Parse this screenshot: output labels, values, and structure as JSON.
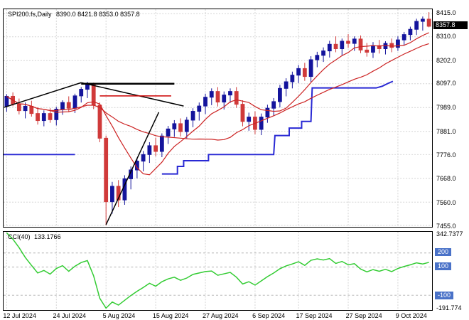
{
  "header": {
    "symbol_period": "SPI200.fs,Daily",
    "ohlc": "8390.0 8421.8 8353.0 8357.8"
  },
  "colors": {
    "up": "#14149c",
    "down": "#d03a3a",
    "ma": "#cc2222",
    "step_line": "#2929d4",
    "cci_line": "#33cc33",
    "grid": "#d4d4d4",
    "level": "#b0b0b0",
    "badge_bg": "#000000",
    "badge_text": "#ffffff",
    "level_badge_bg": "#4a72c8"
  },
  "chart_data": {
    "type": "candlestick",
    "symbol": "SPI200.fs",
    "timeframe": "Daily",
    "current": {
      "open": 8390.0,
      "high": 8421.8,
      "low": 8353.0,
      "close": 8357.8
    },
    "current_price_label": "8357.8",
    "price_axis_labels": [
      "8415.0",
      "8310.0",
      "8202.0",
      "8097.0",
      "7989.0",
      "7881.0",
      "7776.0",
      "7668.0",
      "7560.0",
      "7455.0"
    ],
    "price_range": [
      7448,
      8435
    ],
    "date_labels": [
      [
        "12 Jul 2024",
        0
      ],
      [
        "24 Jul 2024",
        8
      ],
      [
        "5 Aug 2024",
        16
      ],
      [
        "15 Aug 2024",
        24
      ],
      [
        "27 Aug 2024",
        32
      ],
      [
        "6 Sep 2024",
        40
      ],
      [
        "17 Sep 2024",
        47
      ],
      [
        "27 Sep 2024",
        55
      ],
      [
        "9 Oct 2024",
        63
      ]
    ],
    "candles": [
      [
        7995,
        8050,
        7970,
        8040
      ],
      [
        8040,
        8058,
        7995,
        8005
      ],
      [
        8005,
        8030,
        7958,
        7975
      ],
      [
        7975,
        8012,
        7940,
        7995
      ],
      [
        7995,
        8020,
        7948,
        7962
      ],
      [
        7962,
        7990,
        7912,
        7930
      ],
      [
        7930,
        7976,
        7904,
        7962
      ],
      [
        7962,
        7986,
        7920,
        7934
      ],
      [
        7934,
        7992,
        7908,
        7982
      ],
      [
        7982,
        8022,
        7956,
        8012
      ],
      [
        8012,
        8040,
        7968,
        7986
      ],
      [
        7986,
        8052,
        7964,
        8042
      ],
      [
        8042,
        8082,
        8012,
        8072
      ],
      [
        8072,
        8106,
        8032,
        8096
      ],
      [
        8096,
        8102,
        7982,
        8000
      ],
      [
        8000,
        8012,
        7832,
        7850
      ],
      [
        7850,
        7862,
        7455,
        7562
      ],
      [
        7562,
        7652,
        7508,
        7632
      ],
      [
        7632,
        7660,
        7538,
        7570
      ],
      [
        7570,
        7682,
        7548,
        7666
      ],
      [
        7666,
        7722,
        7618,
        7706
      ],
      [
        7706,
        7762,
        7668,
        7746
      ],
      [
        7746,
        7792,
        7700,
        7776
      ],
      [
        7776,
        7832,
        7738,
        7816
      ],
      [
        7816,
        7852,
        7768,
        7790
      ],
      [
        7790,
        7872,
        7764,
        7860
      ],
      [
        7860,
        7906,
        7824,
        7892
      ],
      [
        7892,
        7932,
        7856,
        7916
      ],
      [
        7916,
        7940,
        7858,
        7880
      ],
      [
        7880,
        7946,
        7850,
        7932
      ],
      [
        7932,
        7986,
        7900,
        7972
      ],
      [
        7972,
        8012,
        7930,
        7996
      ],
      [
        7996,
        8052,
        7960,
        8036
      ],
      [
        8036,
        8076,
        8000,
        8062
      ],
      [
        8062,
        8082,
        7994,
        8014
      ],
      [
        8014,
        8062,
        7980,
        8046
      ],
      [
        8046,
        8076,
        8010,
        8062
      ],
      [
        8062,
        8082,
        7988,
        8004
      ],
      [
        8004,
        8022,
        7904,
        7926
      ],
      [
        7926,
        7966,
        7884,
        7946
      ],
      [
        7946,
        7972,
        7868,
        7890
      ],
      [
        7890,
        7962,
        7864,
        7946
      ],
      [
        7946,
        8002,
        7920,
        7986
      ],
      [
        7986,
        8032,
        7950,
        8016
      ],
      [
        8016,
        8092,
        7990,
        8076
      ],
      [
        8076,
        8122,
        8040,
        8106
      ],
      [
        8106,
        8152,
        8076,
        8136
      ],
      [
        8136,
        8182,
        8100,
        8166
      ],
      [
        8166,
        8192,
        8110,
        8130
      ],
      [
        8130,
        8222,
        8106,
        8206
      ],
      [
        8206,
        8242,
        8172,
        8226
      ],
      [
        8226,
        8262,
        8196,
        8246
      ],
      [
        8246,
        8292,
        8216,
        8276
      ],
      [
        8276,
        8312,
        8240,
        8256
      ],
      [
        8256,
        8302,
        8226,
        8290
      ],
      [
        8290,
        8322,
        8260,
        8280
      ],
      [
        8280,
        8312,
        8246,
        8300
      ],
      [
        8300,
        8316,
        8236,
        8250
      ],
      [
        8250,
        8282,
        8220,
        8240
      ],
      [
        8240,
        8286,
        8214,
        8270
      ],
      [
        8270,
        8296,
        8234,
        8256
      ],
      [
        8256,
        8290,
        8230,
        8280
      ],
      [
        8280,
        8302,
        8240,
        8262
      ],
      [
        8262,
        8312,
        8246,
        8296
      ],
      [
        8296,
        8332,
        8270,
        8320
      ],
      [
        8320,
        8356,
        8294,
        8344
      ],
      [
        8344,
        8392,
        8318,
        8380
      ],
      [
        8380,
        8402,
        8338,
        8390
      ],
      [
        8390,
        8421.8,
        8353,
        8357.8
      ]
    ],
    "ma_fast_period": 8,
    "ma_slow_period": 21,
    "step_line_segments": [
      [
        [
          -0.5,
          7776
        ],
        [
          11,
          7776
        ]
      ],
      [
        [
          25,
          7688
        ],
        [
          27.5,
          7688
        ],
        [
          27.5,
          7722
        ],
        [
          28.5,
          7722
        ],
        [
          28.5,
          7748
        ],
        [
          32.5,
          7748
        ],
        [
          32.5,
          7776
        ],
        [
          43,
          7776
        ],
        [
          43.2,
          7862
        ],
        [
          45.5,
          7862
        ],
        [
          45.5,
          7896
        ],
        [
          47.5,
          7896
        ],
        [
          47.5,
          7926
        ],
        [
          49,
          7926
        ],
        [
          49.2,
          8078
        ],
        [
          59.5,
          8078
        ],
        [
          60.5,
          8086
        ],
        [
          61.5,
          8100
        ],
        [
          62.2,
          8108
        ]
      ]
    ],
    "trend_lines": [
      {
        "from": [
          -0.4,
          7990
        ],
        "to": [
          12,
          8102
        ],
        "color": "#000000",
        "w": 1.5
      },
      {
        "from": [
          12,
          8102
        ],
        "to": [
          28.5,
          7996
        ],
        "color": "#000000",
        "w": 1.5
      },
      {
        "from": [
          12,
          8097
        ],
        "to": [
          27,
          8097
        ],
        "color": "#000000",
        "w": 2.5
      },
      {
        "from": [
          15,
          8042
        ],
        "to": [
          26.5,
          8042
        ],
        "color": "#cc0000",
        "w": 1.5
      },
      {
        "from": [
          16,
          7458
        ],
        "to": [
          24.5,
          7968
        ],
        "color": "#000000",
        "w": 1.5
      }
    ],
    "cci": {
      "label": "CCI(40)",
      "value": "133.1766",
      "max_label": "342.7377",
      "min_label": "-191.774",
      "levels": [
        "200",
        "100",
        "-100"
      ],
      "range": [
        -205,
        350
      ],
      "values": [
        342.7377,
        298,
        238,
        168,
        112,
        58,
        76,
        50,
        90,
        110,
        70,
        106,
        132,
        146,
        38,
        -122,
        -191.774,
        -148,
        -170,
        -136,
        -102,
        -72,
        -45,
        -15,
        -36,
        -4,
        16,
        28,
        6,
        22,
        48,
        58,
        68,
        72,
        42,
        52,
        62,
        28,
        -20,
        -4,
        -28,
        2,
        32,
        58,
        88,
        108,
        122,
        138,
        112,
        148,
        158,
        150,
        160,
        126,
        140,
        116,
        124,
        86,
        66,
        82,
        70,
        84,
        68,
        90,
        104,
        116,
        130,
        122,
        133.1766
      ]
    }
  }
}
